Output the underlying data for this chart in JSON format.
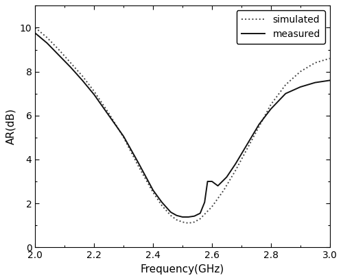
{
  "title": "",
  "xlabel": "Frequency(GHz)",
  "ylabel": "AR(dB)",
  "xlim": [
    2.0,
    3.0
  ],
  "ylim": [
    0,
    11
  ],
  "yticks": [
    0,
    2,
    4,
    6,
    8,
    10
  ],
  "xticks": [
    2.0,
    2.2,
    2.4,
    2.6,
    2.8,
    3.0
  ],
  "simulated_x": [
    2.0,
    2.04,
    2.08,
    2.12,
    2.16,
    2.2,
    2.25,
    2.3,
    2.35,
    2.4,
    2.43,
    2.46,
    2.48,
    2.5,
    2.52,
    2.54,
    2.56,
    2.6,
    2.64,
    2.68,
    2.72,
    2.76,
    2.8,
    2.85,
    2.9,
    2.95,
    3.0
  ],
  "simulated_y": [
    10.0,
    9.55,
    9.0,
    8.4,
    7.8,
    7.1,
    6.1,
    5.0,
    3.7,
    2.5,
    1.9,
    1.45,
    1.25,
    1.15,
    1.1,
    1.15,
    1.3,
    1.85,
    2.6,
    3.5,
    4.5,
    5.5,
    6.5,
    7.4,
    8.0,
    8.4,
    8.6
  ],
  "measured_x": [
    2.0,
    2.04,
    2.08,
    2.12,
    2.16,
    2.2,
    2.25,
    2.3,
    2.35,
    2.4,
    2.43,
    2.46,
    2.48,
    2.5,
    2.52,
    2.54,
    2.56,
    2.575,
    2.585,
    2.6,
    2.62,
    2.65,
    2.68,
    2.72,
    2.76,
    2.8,
    2.85,
    2.9,
    2.95,
    3.0
  ],
  "measured_y": [
    9.75,
    9.3,
    8.75,
    8.2,
    7.6,
    6.95,
    6.0,
    5.05,
    3.85,
    2.6,
    2.05,
    1.6,
    1.45,
    1.38,
    1.38,
    1.42,
    1.55,
    2.05,
    3.0,
    3.0,
    2.8,
    3.2,
    3.8,
    4.7,
    5.6,
    6.3,
    7.0,
    7.3,
    7.5,
    7.6
  ],
  "simulated_color": "#444444",
  "measured_color": "#111111",
  "background_color": "#ffffff",
  "legend_labels": [
    "simulated",
    "measured"
  ],
  "legend_loc": "upper right",
  "spine_linewidth": 0.8,
  "tick_linewidth": 0.8
}
